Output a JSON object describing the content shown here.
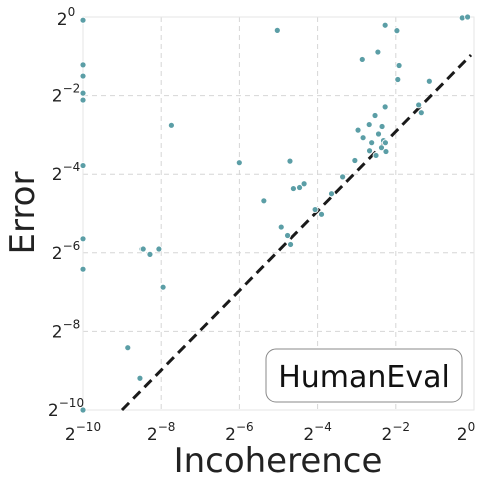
{
  "chart_data": {
    "type": "scatter",
    "xlabel": "Incoherence",
    "ylabel": "Error",
    "xscale": "log2",
    "yscale": "log2",
    "xlim": [
      0.0009765625,
      1
    ],
    "ylim": [
      0.0009765625,
      1
    ],
    "x_ticks": [
      {
        "base": "2",
        "exp": "−10",
        "value": 0.0009765625
      },
      {
        "base": "2",
        "exp": "−8",
        "value": 0.00390625
      },
      {
        "base": "2",
        "exp": "−6",
        "value": 0.015625
      },
      {
        "base": "2",
        "exp": "−4",
        "value": 0.0625
      },
      {
        "base": "2",
        "exp": "−2",
        "value": 0.25
      },
      {
        "base": "2",
        "exp": "0",
        "value": 1
      }
    ],
    "y_ticks": [
      {
        "base": "2",
        "exp": "−10",
        "value": 0.0009765625
      },
      {
        "base": "2",
        "exp": "−8",
        "value": 0.00390625
      },
      {
        "base": "2",
        "exp": "−6",
        "value": 0.015625
      },
      {
        "base": "2",
        "exp": "−4",
        "value": 0.0625
      },
      {
        "base": "2",
        "exp": "−2",
        "value": 0.25
      },
      {
        "base": "2",
        "exp": "0",
        "value": 1
      }
    ],
    "grid": true,
    "reference_line": "y = x",
    "legend": {
      "label": "HumanEval",
      "placement": "bottom-right"
    },
    "point_color": "#5b9ea6",
    "series": [
      {
        "points": [
          [
            0.000977,
            0.945
          ],
          [
            0.000977,
            0.43
          ],
          [
            0.000977,
            0.353
          ],
          [
            0.000977,
            0.261
          ],
          [
            0.000977,
            0.231
          ],
          [
            0.000977,
            0.0728
          ],
          [
            0.000977,
            0.02
          ],
          [
            0.000977,
            0.0117
          ],
          [
            0.000977,
            0.000977
          ],
          [
            0.00278,
            0.0167
          ],
          [
            0.00284,
            0.0167
          ],
          [
            0.0032,
            0.0152
          ],
          [
            0.00375,
            0.0167
          ],
          [
            0.00404,
            0.00852
          ],
          [
            0.00216,
            0.00293
          ],
          [
            0.00268,
            0.00171
          ],
          [
            0.00468,
            0.148
          ],
          [
            0.0156,
            0.0766
          ],
          [
            0.0241,
            0.0391
          ],
          [
            0.0306,
            0.79
          ],
          [
            0.0328,
            0.0246
          ],
          [
            0.0367,
            0.0212
          ],
          [
            0.0387,
            0.0181
          ],
          [
            0.0383,
            0.0787
          ],
          [
            0.0407,
            0.0485
          ],
          [
            0.0454,
            0.0494
          ],
          [
            0.0492,
            0.0528
          ],
          [
            0.0598,
            0.0335
          ],
          [
            0.067,
            0.0308
          ],
          [
            0.08,
            0.0443
          ],
          [
            0.0974,
            0.0596
          ],
          [
            0.121,
            0.0796
          ],
          [
            0.128,
            0.136
          ],
          [
            0.14,
            0.119
          ],
          [
            0.157,
            0.0945
          ],
          [
            0.138,
            0.473
          ],
          [
            0.156,
            0.15
          ],
          [
            0.163,
            0.109
          ],
          [
            0.173,
            0.176
          ],
          [
            0.184,
            0.127
          ],
          [
            0.196,
            0.145
          ],
          [
            0.176,
            0.087
          ],
          [
            0.194,
            0.0998
          ],
          [
            0.201,
            0.113
          ],
          [
            0.208,
            0.109
          ],
          [
            0.21,
            0.0932
          ],
          [
            0.207,
            0.205
          ],
          [
            0.207,
            0.865
          ],
          [
            0.182,
            0.539
          ],
          [
            0.255,
            0.786
          ],
          [
            0.265,
            0.425
          ],
          [
            0.259,
            0.332
          ],
          [
            0.375,
            0.212
          ],
          [
            0.393,
            0.185
          ],
          [
            0.453,
            0.322
          ],
          [
            0.812,
            0.985
          ],
          [
            0.893,
            1.0
          ]
        ]
      }
    ]
  }
}
